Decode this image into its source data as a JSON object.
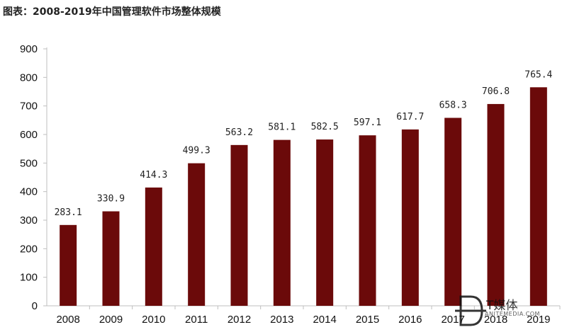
{
  "title": "图表：2008-2019年中国管理软件市场整体规模",
  "watermark": {
    "text": "T媒体",
    "sub": "ANITEMEDIA.COM"
  },
  "chart_data": {
    "type": "bar",
    "categories": [
      "2008",
      "2009",
      "2010",
      "2011",
      "2012",
      "2013",
      "2014",
      "2015",
      "2016",
      "2017",
      "2018",
      "2019"
    ],
    "values": [
      283.1,
      330.9,
      414.3,
      499.3,
      563.2,
      581.1,
      582.5,
      597.1,
      617.7,
      658.3,
      706.8,
      765.4
    ],
    "data_labels": [
      "283.1",
      "330.9",
      "414.3",
      "499.3",
      "563.2",
      "581.1",
      "582.5",
      "597.1",
      "617.7",
      "658.3",
      "706.8",
      "765.4"
    ],
    "y_ticks": [
      "0",
      "100",
      "200",
      "300",
      "400",
      "500",
      "600",
      "700",
      "800",
      "900"
    ],
    "ylim": [
      0,
      900
    ],
    "grid": false,
    "legend": "none",
    "bar_color": "#6b0a0a",
    "axis_color": "#bfbfbf"
  }
}
